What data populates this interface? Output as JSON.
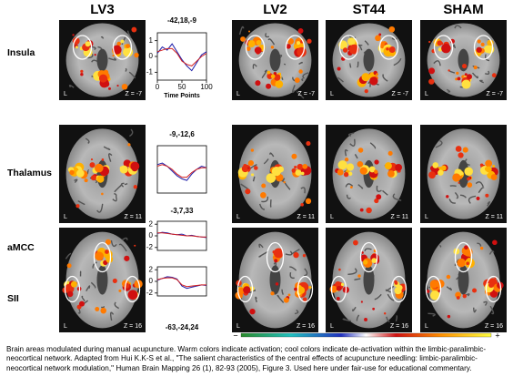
{
  "columns": [
    "LV3",
    "LV2",
    "ST44",
    "SHAM"
  ],
  "rows": [
    "Insula",
    "Thalamus",
    "aMCC",
    "SII"
  ],
  "slices": [
    {
      "left": "L",
      "z": "Z = -7"
    },
    {
      "left": "L",
      "z": "Z = 11"
    },
    {
      "left": "L",
      "z": "Z = 16"
    }
  ],
  "plots": [
    {
      "title": "-42,18,-9",
      "ylim": [
        -1.5,
        1.5
      ],
      "yticks": [
        1,
        0,
        -1
      ],
      "xlim": [
        0,
        100
      ],
      "xticks": [
        0,
        50,
        100
      ],
      "xlabel": "Time Points",
      "x": [
        0,
        10,
        20,
        30,
        40,
        50,
        60,
        70,
        80,
        90,
        100
      ],
      "series": [
        {
          "color": "#1c1ca8",
          "values": [
            0.2,
            0.6,
            0.4,
            0.8,
            0.3,
            -0.2,
            -0.6,
            -0.9,
            -0.4,
            0.1,
            0.3
          ]
        },
        {
          "color": "#d42020",
          "values": [
            0.3,
            0.4,
            0.5,
            0.5,
            0.2,
            -0.3,
            -0.5,
            -0.6,
            -0.3,
            0,
            0.2
          ]
        }
      ]
    },
    {
      "title": "-9,-12,6",
      "ylim": [
        -1.5,
        1.5
      ],
      "xlim": [
        0,
        100
      ],
      "x": [
        0,
        10,
        20,
        30,
        40,
        50,
        60,
        70,
        80,
        90,
        100
      ],
      "series": [
        {
          "color": "#1c1ca8",
          "values": [
            0.3,
            0.4,
            0.2,
            -0.1,
            -0.4,
            -0.6,
            -0.7,
            -0.3,
            0,
            0.2,
            0.1
          ]
        },
        {
          "color": "#d42020",
          "values": [
            0.2,
            0.3,
            0.2,
            0,
            -0.3,
            -0.5,
            -0.5,
            -0.2,
            0,
            0.1,
            0.1
          ]
        }
      ]
    },
    {
      "title": "-3,7,33",
      "ylim": [
        -2.5,
        2.5
      ],
      "yticks": [
        2,
        0,
        -2
      ],
      "xlim": [
        0,
        100
      ],
      "x": [
        0,
        10,
        20,
        30,
        40,
        50,
        60,
        70,
        80,
        90,
        100
      ],
      "series": [
        {
          "color": "#1c1ca8",
          "values": [
            0.4,
            0.6,
            0.5,
            0.3,
            0.2,
            0.3,
            0,
            0.1,
            -0.1,
            -0.2,
            -0.3
          ]
        },
        {
          "color": "#d42020",
          "values": [
            0.5,
            0.5,
            0.4,
            0.3,
            0.2,
            0.1,
            0,
            0,
            -0.1,
            -0.2,
            -0.2
          ]
        }
      ]
    },
    {
      "title": "-63,-24,24",
      "ylim": [
        -2.5,
        2.5
      ],
      "yticks": [
        2,
        0,
        -2
      ],
      "xlim": [
        0,
        100
      ],
      "x": [
        0,
        10,
        20,
        30,
        40,
        50,
        60,
        70,
        80,
        90,
        100
      ],
      "series": [
        {
          "color": "#1c1ca8",
          "values": [
            0.2,
            0.5,
            0.8,
            0.7,
            0.4,
            -0.8,
            -1.2,
            -1,
            -0.8,
            -0.6,
            -0.7
          ]
        },
        {
          "color": "#d42020",
          "values": [
            0.3,
            0.5,
            0.6,
            0.6,
            0.3,
            -0.6,
            -0.9,
            -0.8,
            -0.7,
            -0.6,
            -0.6
          ]
        }
      ]
    }
  ],
  "colorbar": {
    "low": "−",
    "high": "+"
  },
  "caption": "Brain areas modulated during manual acupuncture. Warm colors indicate activation; cool colors indicate de-activation within the limbic-paralimbic-neocortical network. Adapted from Hui K.K-S et al.,  \"The salient characteristics of the central effects of acupuncture needling: limbic-paralimbic-neocortical network modulation,\" Human Brain Mapping 26 (1), 82-93 (2005), Figure 3. Used here under fair-use for educational commentary."
}
